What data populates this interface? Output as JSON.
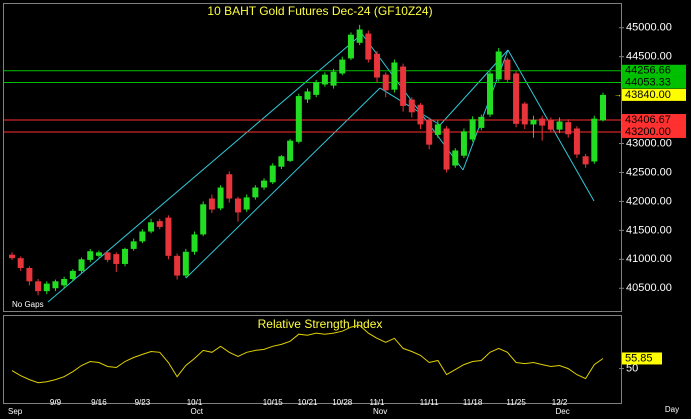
{
  "chart_data": [
    {
      "type": "candlestick",
      "title": "10 BAHT  Gold Futures Dec-24  (GF10Z24)",
      "note": "No Gaps",
      "x_label": "Day",
      "categories": [
        null,
        null,
        null,
        null,
        null,
        "9/9",
        null,
        null,
        null,
        null,
        "9/16",
        null,
        null,
        null,
        null,
        "9/23",
        null,
        null,
        null,
        null,
        null,
        "10/1",
        null,
        null,
        null,
        null,
        null,
        null,
        null,
        null,
        "10/15",
        null,
        null,
        null,
        "10/21",
        null,
        null,
        null,
        "10/28",
        null,
        null,
        null,
        "11/1",
        null,
        null,
        null,
        null,
        null,
        "11/11",
        null,
        null,
        null,
        null,
        "11/18",
        null,
        null,
        null,
        null,
        "11/25",
        null,
        null,
        null,
        null,
        "12/2",
        null,
        null,
        null,
        null,
        null
      ],
      "months": [
        "Sep",
        null,
        null,
        null,
        null,
        null,
        null,
        null,
        null,
        null,
        null,
        null,
        null,
        null,
        null,
        null,
        null,
        null,
        null,
        null,
        null,
        "Oct",
        null,
        null,
        null,
        null,
        null,
        null,
        null,
        null,
        null,
        null,
        null,
        null,
        null,
        null,
        null,
        null,
        null,
        null,
        null,
        null,
        "Nov",
        null,
        null,
        null,
        null,
        null,
        null,
        null,
        null,
        null,
        null,
        null,
        null,
        null,
        null,
        null,
        null,
        null,
        null,
        null,
        null,
        "Dec",
        null,
        null,
        null,
        null,
        null
      ],
      "open": [
        41080,
        41020,
        40850,
        40620,
        40450,
        40500,
        40550,
        40660,
        40800,
        40990,
        41060,
        41120,
        41090,
        40920,
        41180,
        41310,
        41480,
        41660,
        41720,
        41060,
        40720,
        41130,
        41430,
        42050,
        41880,
        42470,
        42050,
        41860,
        42070,
        42240,
        42330,
        42600,
        42700,
        43030,
        43760,
        43840,
        44020,
        44000,
        44210,
        44470,
        44740,
        44900,
        44550,
        44190,
        43930,
        44330,
        43760,
        43670,
        43400,
        43150,
        43260,
        42620,
        42790,
        43070,
        43270,
        43500,
        44110,
        44450,
        44210,
        43690,
        43330,
        43430,
        43410,
        43240,
        43370,
        43260,
        42780,
        42690,
        43400
      ],
      "high": [
        41120,
        41050,
        40880,
        40660,
        40620,
        40650,
        40700,
        40830,
        41030,
        41180,
        41150,
        41160,
        41120,
        41200,
        41360,
        41520,
        41700,
        41700,
        41760,
        41100,
        41180,
        41480,
        42000,
        42120,
        42280,
        42520,
        42080,
        42120,
        42280,
        42400,
        42660,
        42800,
        43080,
        43860,
        43950,
        44100,
        44230,
        44290,
        44500,
        44920,
        45050,
        44950,
        44600,
        44230,
        44450,
        44380,
        43800,
        43700,
        43450,
        43400,
        43300,
        42920,
        43260,
        43470,
        43500,
        44250,
        44650,
        44480,
        44250,
        43720,
        43480,
        43480,
        43450,
        43450,
        43420,
        43300,
        42820,
        43480,
        43880
      ],
      "low": [
        40990,
        40800,
        40550,
        40380,
        40400,
        40450,
        40500,
        40620,
        40760,
        40950,
        41030,
        40950,
        40780,
        40880,
        41150,
        41280,
        41450,
        41520,
        41000,
        40650,
        40680,
        41080,
        41400,
        41800,
        41850,
        41980,
        41650,
        41820,
        42030,
        42200,
        42300,
        42560,
        42680,
        43000,
        43700,
        43800,
        43980,
        43950,
        44180,
        44440,
        44700,
        44400,
        44050,
        43800,
        43880,
        43550,
        43450,
        43250,
        42900,
        43100,
        42500,
        42580,
        42750,
        43030,
        43230,
        43460,
        44070,
        44050,
        43280,
        43250,
        43100,
        43050,
        43200,
        43180,
        43100,
        42750,
        42580,
        42650,
        43380
      ],
      "close": [
        41020,
        40850,
        40620,
        40450,
        40580,
        40620,
        40660,
        40800,
        41000,
        41140,
        41120,
        40990,
        40920,
        41180,
        41310,
        41480,
        41640,
        41560,
        41060,
        40720,
        41130,
        41430,
        41950,
        41860,
        42240,
        42050,
        41810,
        42070,
        42240,
        42360,
        42620,
        42780,
        43050,
        43820,
        43900,
        44060,
        44190,
        44240,
        44450,
        44880,
        44970,
        44450,
        44140,
        43920,
        44400,
        43650,
        43540,
        43330,
        42980,
        43330,
        42550,
        42880,
        43210,
        43420,
        43460,
        44210,
        44590,
        44100,
        43340,
        43330,
        43410,
        43310,
        43240,
        43380,
        43160,
        42810,
        42640,
        43430,
        43840
      ],
      "up_color": "#22dd22",
      "down_color": "#e8343b",
      "ylim": [
        40090,
        45410
      ],
      "yticks": [
        {
          "value": 45000,
          "label": "45000.00"
        },
        {
          "value": 44500,
          "label": "44500.00"
        },
        {
          "value": 43000,
          "label": "43000.00"
        },
        {
          "value": 42500,
          "label": "42500.00"
        },
        {
          "value": 42000,
          "label": "42000.00"
        },
        {
          "value": 41500,
          "label": "41500.00"
        },
        {
          "value": 41000,
          "label": "41000.00"
        },
        {
          "value": 40500,
          "label": "40500.00"
        }
      ],
      "levels": [
        {
          "value": 44256.66,
          "label": "44256.66",
          "color": "#00c000"
        },
        {
          "value": 44053.33,
          "label": "44053.33",
          "color": "#00c000"
        },
        {
          "value": 43406.67,
          "label": "43406.67",
          "color": "#ff3030"
        },
        {
          "value": 43200,
          "label": "43200.00",
          "color": "#ff3030"
        }
      ],
      "last_price": {
        "value": 43840,
        "label": "43840.00",
        "color": "#ffff00"
      }
    },
    {
      "type": "line",
      "title": "Relative Strength Index",
      "color": "#e0d000",
      "values": [
        48.8,
        45.9,
        43.6,
        41.8,
        42.4,
        43.6,
        45.3,
        48.2,
        51.8,
        54.1,
        53.5,
        51.2,
        50.6,
        54.1,
        56.4,
        58.2,
        59.9,
        59.4,
        53.5,
        45.3,
        51.8,
        55.8,
        60.5,
        59.4,
        62.9,
        59.4,
        57.0,
        59.4,
        60.5,
        61.1,
        62.9,
        64.0,
        65.8,
        69.9,
        69.3,
        70.5,
        69.9,
        70.5,
        71.6,
        74.0,
        75.1,
        70.5,
        67.5,
        65.2,
        67.5,
        61.7,
        59.9,
        57.6,
        53.5,
        54.7,
        46.5,
        49.4,
        52.3,
        54.1,
        54.7,
        59.4,
        61.7,
        59.4,
        53.5,
        52.9,
        53.5,
        52.3,
        51.2,
        51.8,
        50.0,
        46.5,
        44.2,
        52.3,
        55.85
      ],
      "ylim": [
        29.5,
        81
      ],
      "yticks": [
        50
      ]
    }
  ]
}
